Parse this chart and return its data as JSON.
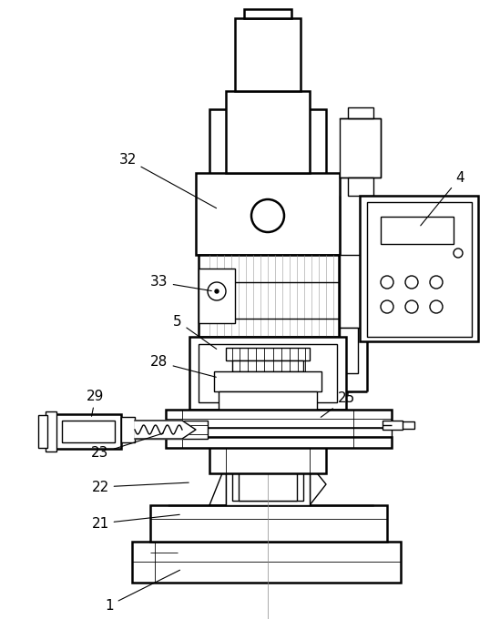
{
  "bg_color": "#ffffff",
  "line_color": "#000000",
  "lw": 1.0,
  "lw2": 1.8,
  "lw3": 0.6,
  "figsize": [
    5.49,
    6.8
  ],
  "dpi": 100
}
